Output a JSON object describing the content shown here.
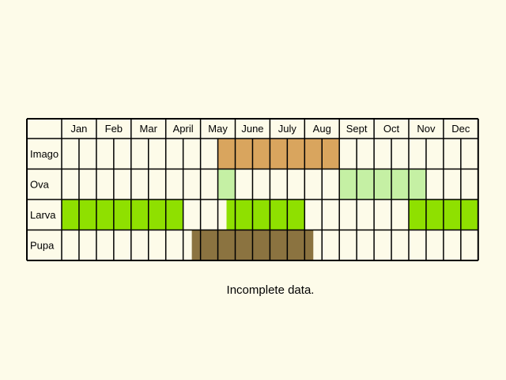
{
  "months": [
    "Jan",
    "Feb",
    "Mar",
    "April",
    "May",
    "June",
    "July",
    "Aug",
    "Sept",
    "Oct",
    "Nov",
    "Dec"
  ],
  "stages": [
    {
      "name": "Imago",
      "color": "#d9a55e",
      "bars": [
        [
          9,
          16
        ]
      ]
    },
    {
      "name": "Ova",
      "color": "#c5f0a4",
      "bars": [
        [
          9,
          10
        ],
        [
          16,
          21
        ]
      ]
    },
    {
      "name": "Larva",
      "color": "#8fe000",
      "bars": [
        [
          0,
          7
        ],
        [
          9.5,
          14
        ],
        [
          20,
          24
        ]
      ]
    },
    {
      "name": "Pupa",
      "color": "#8b7340",
      "bars": [
        [
          7.5,
          14.5
        ]
      ]
    }
  ],
  "grid": {
    "cells_per_month": 2,
    "empty_fill": "#fdfbe9",
    "line_color": "#000000"
  },
  "footnote": "Incomplete data."
}
